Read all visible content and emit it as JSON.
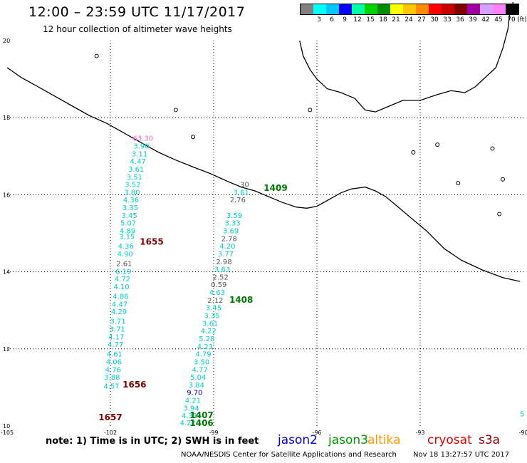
{
  "header": {
    "title": "12:00 – 23:59 UTC 11/17/2017",
    "subtitle": "12 hour collection of altimeter wave heights"
  },
  "legend": {
    "labels": [
      "3",
      "6",
      "9",
      "12",
      "15",
      "18",
      "21",
      "24",
      "27",
      "30",
      "33",
      "36",
      "39",
      "42",
      "45",
      "70"
    ],
    "unit": "(ft)",
    "colors": [
      "#808080",
      "#00ffff",
      "#00c8ff",
      "#0000ff",
      "#00ffa0",
      "#00d200",
      "#008c00",
      "#ffff00",
      "#ffc800",
      "#ff8c00",
      "#ff0000",
      "#c80000",
      "#800000",
      "#a000a0",
      "#d8a0ff",
      "#ff80ff",
      "#000000"
    ]
  },
  "map": {
    "lat_labels": [
      "20",
      "18",
      "16",
      "14",
      "12",
      "10"
    ],
    "lon_labels": [
      "-105",
      "-102",
      "-99",
      "-96",
      "-93",
      "-90"
    ]
  },
  "tracks": [
    {
      "color": "#00cccc",
      "points": [
        {
          "lat": 17.4,
          "lon": -101.05,
          "v": "63.30",
          "c": "#ff66cc"
        },
        {
          "lat": 17.2,
          "lon": -101.1,
          "v": "3.90"
        },
        {
          "lat": 17.0,
          "lon": -101.15,
          "v": "3.11"
        },
        {
          "lat": 16.8,
          "lon": -101.2,
          "v": "4.47"
        },
        {
          "lat": 16.6,
          "lon": -101.25,
          "v": "3.61"
        },
        {
          "lat": 16.4,
          "lon": -101.3,
          "v": "3.51"
        },
        {
          "lat": 16.2,
          "lon": -101.35,
          "v": "3.52"
        },
        {
          "lat": 16.0,
          "lon": -101.37,
          "v": "3.80"
        },
        {
          "lat": 15.8,
          "lon": -101.4,
          "v": "4.36"
        },
        {
          "lat": 15.6,
          "lon": -101.42,
          "v": "3.35"
        },
        {
          "lat": 15.4,
          "lon": -101.45,
          "v": "3.45"
        },
        {
          "lat": 15.2,
          "lon": -101.48,
          "v": "5.07"
        },
        {
          "lat": 15.0,
          "lon": -101.5,
          "v": "4.89"
        },
        {
          "lat": 14.85,
          "lon": -101.52,
          "v": "3.15"
        },
        {
          "lat": 14.6,
          "lon": -101.55,
          "v": "4.36"
        },
        {
          "lat": 14.4,
          "lon": -101.57,
          "v": "4.90"
        },
        {
          "lat": 14.15,
          "lon": -101.6,
          "v": "2.61",
          "c": "#555555"
        },
        {
          "lat": 13.95,
          "lon": -101.62,
          "v": "6.19"
        },
        {
          "lat": 13.75,
          "lon": -101.65,
          "v": "4.72"
        },
        {
          "lat": 13.55,
          "lon": -101.68,
          "v": "4.10"
        },
        {
          "lat": 13.3,
          "lon": -101.7,
          "v": "4.86"
        },
        {
          "lat": 13.1,
          "lon": -101.73,
          "v": "4.47"
        },
        {
          "lat": 12.9,
          "lon": -101.75,
          "v": "4.29"
        },
        {
          "lat": 12.65,
          "lon": -101.78,
          "v": "3.71"
        },
        {
          "lat": 12.45,
          "lon": -101.8,
          "v": "3.71"
        },
        {
          "lat": 12.25,
          "lon": -101.83,
          "v": "4.17"
        },
        {
          "lat": 12.05,
          "lon": -101.85,
          "v": "4.77"
        },
        {
          "lat": 11.8,
          "lon": -101.88,
          "v": "4.61"
        },
        {
          "lat": 11.6,
          "lon": -101.9,
          "v": "4.06"
        },
        {
          "lat": 11.4,
          "lon": -101.92,
          "v": "4.76"
        },
        {
          "lat": 11.2,
          "lon": -101.95,
          "v": "3.88"
        },
        {
          "lat": 10.97,
          "lon": -101.97,
          "v": "4.57"
        }
      ]
    },
    {
      "color": "#00cccc",
      "points": [
        {
          "lat": 16.2,
          "lon": -98.1,
          "v": "30",
          "c": "#555555"
        },
        {
          "lat": 16.0,
          "lon": -98.2,
          "v": "3.61"
        },
        {
          "lat": 15.8,
          "lon": -98.3,
          "v": "2.76",
          "c": "#555555"
        },
        {
          "lat": 15.4,
          "lon": -98.4,
          "v": "3.59"
        },
        {
          "lat": 15.2,
          "lon": -98.45,
          "v": "3.33"
        },
        {
          "lat": 15.0,
          "lon": -98.5,
          "v": "3.69"
        },
        {
          "lat": 14.8,
          "lon": -98.55,
          "v": "2.78",
          "c": "#555555"
        },
        {
          "lat": 14.6,
          "lon": -98.6,
          "v": "4.20"
        },
        {
          "lat": 14.4,
          "lon": -98.65,
          "v": "3.77"
        },
        {
          "lat": 14.2,
          "lon": -98.7,
          "v": "2.98",
          "c": "#555555"
        },
        {
          "lat": 14.0,
          "lon": -98.75,
          "v": "3.63"
        },
        {
          "lat": 13.8,
          "lon": -98.8,
          "v": "2.52",
          "c": "#555555"
        },
        {
          "lat": 13.6,
          "lon": -98.85,
          "v": "0.59",
          "c": "#555555"
        },
        {
          "lat": 13.4,
          "lon": -98.9,
          "v": "4.63"
        },
        {
          "lat": 13.2,
          "lon": -98.95,
          "v": "2.12",
          "c": "#555555"
        },
        {
          "lat": 13.0,
          "lon": -99.0,
          "v": "3.45"
        },
        {
          "lat": 12.8,
          "lon": -99.05,
          "v": "3.35"
        },
        {
          "lat": 12.6,
          "lon": -99.1,
          "v": "3.61"
        },
        {
          "lat": 12.4,
          "lon": -99.15,
          "v": "4.22"
        },
        {
          "lat": 12.2,
          "lon": -99.2,
          "v": "5.28"
        },
        {
          "lat": 12.0,
          "lon": -99.25,
          "v": "4.23"
        },
        {
          "lat": 11.8,
          "lon": -99.3,
          "v": "4.79"
        },
        {
          "lat": 11.6,
          "lon": -99.35,
          "v": "3.50"
        },
        {
          "lat": 11.4,
          "lon": -99.4,
          "v": "4.77"
        },
        {
          "lat": 11.2,
          "lon": -99.45,
          "v": "5.04"
        },
        {
          "lat": 11.0,
          "lon": -99.5,
          "v": "3.84"
        },
        {
          "lat": 10.8,
          "lon": -99.55,
          "v": "9.70",
          "c": "#0000cc"
        },
        {
          "lat": 10.6,
          "lon": -99.6,
          "v": "4.21"
        },
        {
          "lat": 10.4,
          "lon": -99.65,
          "v": "3.94"
        },
        {
          "lat": 10.2,
          "lon": -99.7,
          "v": "4.31"
        },
        {
          "lat": 10.02,
          "lon": -99.75,
          "v": "4.22"
        }
      ]
    }
  ],
  "edge_label": {
    "lat": 10.25,
    "lon": -90.1,
    "v": "5"
  },
  "pass_labels": [
    {
      "lat": 16.1,
      "lon": -97.2,
      "text": "1409",
      "color": "#007700"
    },
    {
      "lat": 14.7,
      "lon": -100.8,
      "text": "1655",
      "color": "#800000"
    },
    {
      "lat": 13.2,
      "lon": -98.2,
      "text": "1408",
      "color": "#007700"
    },
    {
      "lat": 11.0,
      "lon": -101.3,
      "text": "1656",
      "color": "#800000"
    },
    {
      "lat": 10.2,
      "lon": -99.35,
      "text": "1407",
      "color": "#007700"
    },
    {
      "lat": 10.0,
      "lon": -99.35,
      "text": "1406",
      "color": "#007700"
    },
    {
      "lat": 10.15,
      "lon": -102.0,
      "text": "1657",
      "color": "#800000"
    }
  ],
  "notes": "note: 1) Time is in UTC; 2) SWH is in feet",
  "satellites": [
    {
      "name": "jason2",
      "color": "#0000dd"
    },
    {
      "name": "jason3",
      "color": "#009900"
    },
    {
      "name": "altika",
      "color": "#ff9900"
    },
    {
      "name": "cryosat",
      "color": "#dd0000"
    },
    {
      "name": "s3a",
      "color": "#990000"
    }
  ],
  "credit": "NOAA/NESDIS Center for Satellite Applications and Research",
  "timestamp": "Nov 18 13:27:57 UTC 2017"
}
